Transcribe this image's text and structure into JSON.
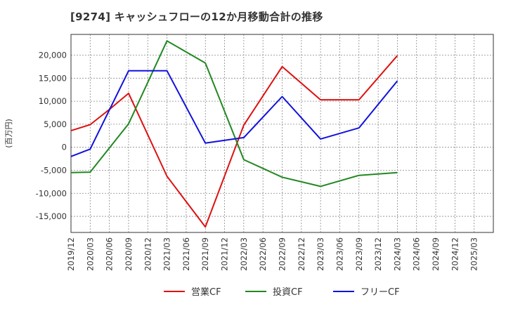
{
  "chart_data": {
    "type": "line",
    "title": "[9274]  キャッシュフローの12か月移動合計の推移",
    "ylabel": "(百万円)",
    "xlabel": "",
    "ylim": [
      -18500,
      24500
    ],
    "yticks": [
      -15000,
      -10000,
      -5000,
      0,
      5000,
      10000,
      15000,
      20000
    ],
    "ytick_labels": [
      "-15,000",
      "-10,000",
      "-5,000",
      "0",
      "5,000",
      "10,000",
      "15,000",
      "20,000"
    ],
    "categories": [
      "2019/12",
      "2020/03",
      "2020/06",
      "2020/09",
      "2020/12",
      "2021/03",
      "2021/06",
      "2021/09",
      "2021/12",
      "2022/03",
      "2022/06",
      "2022/09",
      "2022/12",
      "2023/03",
      "2023/06",
      "2023/09",
      "2023/12",
      "2024/03",
      "2024/06",
      "2024/09",
      "2024/12",
      "2025/03"
    ],
    "grid": true,
    "legend_position": "bottom",
    "series": [
      {
        "name": "営業CF",
        "color": "#dd1111",
        "values": [
          3600,
          4900,
          8200,
          11700,
          null,
          -6300,
          null,
          -17300,
          null,
          4800,
          null,
          17500,
          null,
          10300,
          null,
          10300,
          null,
          19900,
          null,
          null,
          null,
          null
        ]
      },
      {
        "name": "投資CF",
        "color": "#228822",
        "values": [
          -5500,
          -5400,
          null,
          5100,
          null,
          23100,
          null,
          18300,
          null,
          -2700,
          null,
          -6500,
          null,
          -8500,
          null,
          -6100,
          null,
          -5500,
          null,
          null,
          null,
          null
        ]
      },
      {
        "name": "フリーCF",
        "color": "#1111dd",
        "values": [
          -2000,
          -400,
          null,
          16600,
          null,
          16600,
          null,
          900,
          null,
          2100,
          null,
          11000,
          null,
          1800,
          null,
          4200,
          null,
          14400,
          null,
          null,
          null,
          null
        ]
      }
    ]
  }
}
